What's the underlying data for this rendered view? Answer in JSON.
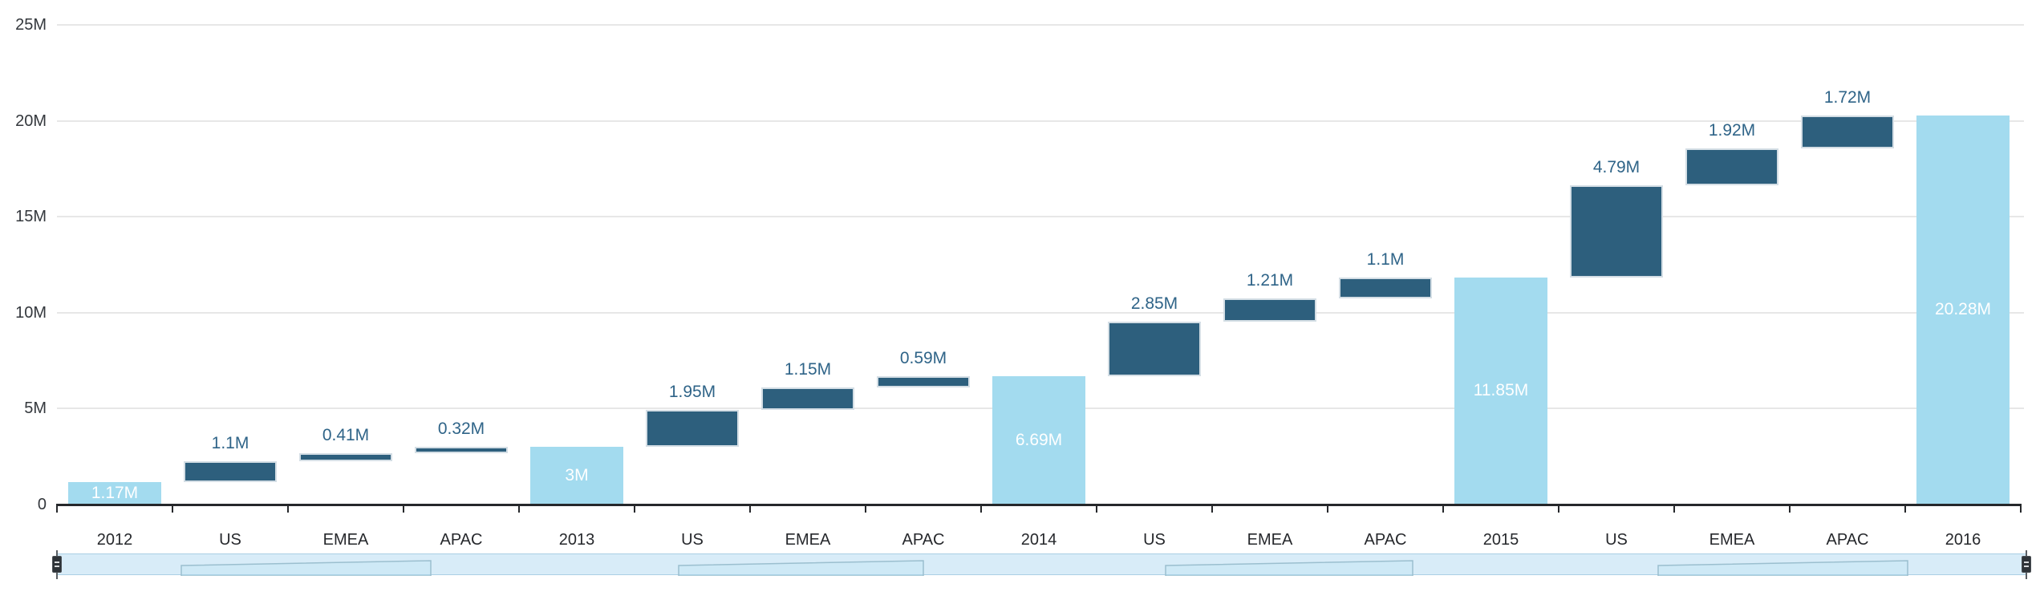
{
  "chart_data": {
    "type": "bar",
    "subtype": "waterfall",
    "title": "",
    "categories": [
      "2012",
      "US",
      "EMEA",
      "APAC",
      "2013",
      "US",
      "EMEA",
      "APAC",
      "2014",
      "US",
      "EMEA",
      "APAC",
      "2015",
      "US",
      "EMEA",
      "APAC",
      "2016"
    ],
    "bars": [
      {
        "label": "2012",
        "value": 1.17,
        "display": "1.17M",
        "kind": "total"
      },
      {
        "label": "US",
        "value": 1.1,
        "display": "1.1M",
        "kind": "increase"
      },
      {
        "label": "EMEA",
        "value": 0.41,
        "display": "0.41M",
        "kind": "increase"
      },
      {
        "label": "APAC",
        "value": 0.32,
        "display": "0.32M",
        "kind": "increase"
      },
      {
        "label": "2013",
        "value": 3.0,
        "display": "3M",
        "kind": "total"
      },
      {
        "label": "US",
        "value": 1.95,
        "display": "1.95M",
        "kind": "increase"
      },
      {
        "label": "EMEA",
        "value": 1.15,
        "display": "1.15M",
        "kind": "increase"
      },
      {
        "label": "APAC",
        "value": 0.59,
        "display": "0.59M",
        "kind": "increase"
      },
      {
        "label": "2014",
        "value": 6.69,
        "display": "6.69M",
        "kind": "total"
      },
      {
        "label": "US",
        "value": 2.85,
        "display": "2.85M",
        "kind": "increase"
      },
      {
        "label": "EMEA",
        "value": 1.21,
        "display": "1.21M",
        "kind": "increase"
      },
      {
        "label": "APAC",
        "value": 1.1,
        "display": "1.1M",
        "kind": "increase"
      },
      {
        "label": "2015",
        "value": 11.85,
        "display": "11.85M",
        "kind": "total"
      },
      {
        "label": "US",
        "value": 4.79,
        "display": "4.79M",
        "kind": "increase"
      },
      {
        "label": "EMEA",
        "value": 1.92,
        "display": "1.92M",
        "kind": "increase"
      },
      {
        "label": "APAC",
        "value": 1.72,
        "display": "1.72M",
        "kind": "increase"
      },
      {
        "label": "2016",
        "value": 20.28,
        "display": "20.28M",
        "kind": "total"
      }
    ],
    "y_axis": {
      "ticks": [
        "25M",
        "20M",
        "15M",
        "10M",
        "5M",
        "0"
      ],
      "tick_values": [
        25,
        20,
        15,
        10,
        5,
        0
      ],
      "unit": "M",
      "ylim": [
        0,
        25
      ]
    },
    "grid": true,
    "legend_position": "none",
    "colors": {
      "total_bar": "#a3dbef",
      "change_bar": "#2d5f7d",
      "change_label": "#2f6488",
      "total_label": "#ffffff",
      "gridline": "#e7e7e7",
      "axis_line": "#26282b",
      "axis_text": "#34383d",
      "navigator_fill": "#d8ecf8",
      "navigator_border": "#aacfe4",
      "navigator_outline": "#9bbfcf"
    }
  },
  "navigator": {
    "name": "horizontal scroll navigator",
    "left_handle": "drag-handle",
    "right_handle": "drag-handle"
  }
}
